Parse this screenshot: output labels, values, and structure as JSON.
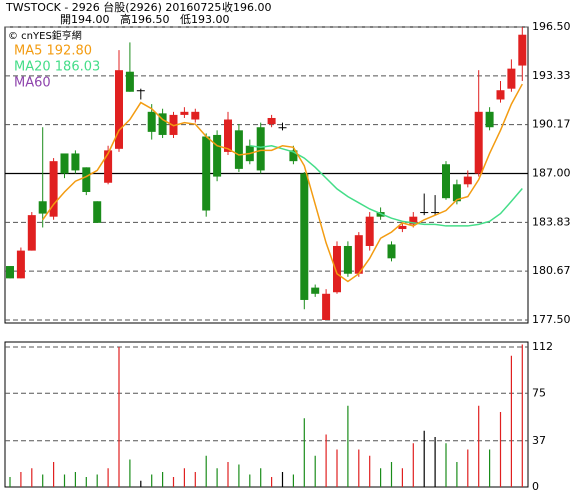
{
  "header": {
    "line1": "TWSTOCK - 2926 台股(2926) 20160725",
    "close": "收196.00",
    "open": "開194.00",
    "high": "高196.50",
    "low": "低193.00"
  },
  "chart_data": [
    {
      "type": "candlestick",
      "legend": {
        "source": "© cnYES鉅亨網",
        "entries": [
          {
            "label": "MA5 192.80",
            "color": "#f39c12"
          },
          {
            "label": "MA20 186.03",
            "color": "#44dd88"
          },
          {
            "label": "MA60",
            "color": "#8e44ad"
          }
        ]
      },
      "open": [
        181,
        180.2,
        182,
        185.2,
        184.2,
        188.3,
        188.3,
        187.4,
        185.2,
        186.4,
        188.6,
        193.6,
        192.4,
        191,
        190.9,
        189.5,
        190.8,
        190.5,
        189.4,
        189.5,
        188.4,
        189.8,
        188.8,
        190,
        190.2,
        190,
        188.5,
        187,
        179.6,
        177.5,
        179.3,
        182.3,
        180.5,
        182.3,
        184.5,
        182.4,
        183.4,
        183.7,
        184.5,
        184.5,
        187.6,
        186.3,
        186.3,
        187,
        191,
        191.8,
        192.5,
        194
      ],
      "high": [
        181,
        182.2,
        184.5,
        190,
        188,
        188.3,
        188.5,
        187.4,
        185.2,
        188.8,
        195,
        195.5,
        192.5,
        191.5,
        191.2,
        191,
        191.3,
        191.2,
        189.6,
        189.8,
        191,
        190.2,
        189.2,
        190.3,
        190.8,
        190.3,
        188.8,
        187.1,
        179.8,
        179.5,
        182.6,
        182.6,
        183.2,
        184.5,
        184.8,
        182.6,
        183.8,
        184.5,
        185.7,
        185.6,
        187.8,
        186.6,
        187.2,
        193.7,
        191.3,
        193,
        194.4,
        196.5
      ],
      "low": [
        180.2,
        180.2,
        182,
        183.5,
        184,
        186.7,
        187,
        185.6,
        183.8,
        186.3,
        188.4,
        192.3,
        191.8,
        189.2,
        189.3,
        189.3,
        190.6,
        190.3,
        184.2,
        186.5,
        188.2,
        187.1,
        187.6,
        187,
        190,
        189.8,
        187.6,
        178.2,
        179,
        177.5,
        179.2,
        180.3,
        180.3,
        182,
        184,
        181.3,
        183.2,
        183.5,
        184.3,
        184.3,
        185.3,
        185,
        186.1,
        186.8,
        189.8,
        191.6,
        192.3,
        193
      ],
      "close": [
        180.2,
        182,
        184.3,
        184.4,
        187.8,
        187,
        187.2,
        185.8,
        183.8,
        188.5,
        193.7,
        192.3,
        192.4,
        189.7,
        189.5,
        190.8,
        191,
        191,
        184.6,
        186.8,
        190.5,
        187.3,
        187.8,
        187.2,
        190.6,
        190,
        187.8,
        178.8,
        179.2,
        179.2,
        182.3,
        180.5,
        183,
        184.2,
        184.2,
        181.5,
        183.6,
        184.2,
        184.5,
        184.5,
        185.4,
        185.2,
        186.8,
        191,
        190,
        192.4,
        193.8,
        196
      ],
      "ma5": [
        null,
        null,
        null,
        184,
        185,
        185.8,
        186.5,
        186.8,
        187.2,
        188.3,
        189.8,
        190.5,
        191.6,
        191.2,
        190.5,
        190.1,
        190.3,
        190.2,
        189.4,
        188.8,
        188.6,
        188.2,
        188.3,
        188.5,
        188.5,
        188.8,
        188.7,
        187.5,
        185,
        182.5,
        180.5,
        180,
        180.5,
        181.5,
        182.8,
        183.2,
        183.8,
        183.6,
        184.0,
        184.3,
        184.6,
        185.3,
        185.5,
        186.6,
        188.3,
        189.8,
        191.5,
        192.8
      ],
      "ma20": [
        null,
        null,
        null,
        null,
        null,
        null,
        null,
        null,
        null,
        null,
        null,
        null,
        null,
        null,
        null,
        null,
        null,
        null,
        null,
        null,
        null,
        null,
        188.8,
        188.7,
        188.8,
        188.6,
        188.4,
        188,
        187.4,
        186.7,
        186,
        185.5,
        185.1,
        184.7,
        184.4,
        184.1,
        183.9,
        183.8,
        183.7,
        183.7,
        183.6,
        183.6,
        183.6,
        183.7,
        183.9,
        184.4,
        185.2,
        186.03
      ],
      "ylim": [
        177.5,
        196.5
      ],
      "yticks": [
        {
          "value": 177.5,
          "label": "177.50"
        },
        {
          "value": 180.67,
          "label": "180.67"
        },
        {
          "value": 183.83,
          "label": "183.83"
        },
        {
          "value": 187.0,
          "label": "187.00"
        },
        {
          "value": 190.17,
          "label": "190.17"
        },
        {
          "value": 193.33,
          "label": "193.33"
        },
        {
          "value": 196.5,
          "label": "196.50"
        }
      ],
      "reference_line": 187.0,
      "up_color": "#e02020",
      "down_color": "#1a8c1a",
      "flat_color": "#000000"
    },
    {
      "type": "volume",
      "values": [
        8,
        12,
        15,
        10,
        20,
        10,
        12,
        8,
        10,
        15,
        112,
        22,
        5,
        10,
        12,
        8,
        15,
        12,
        25,
        15,
        20,
        18,
        10,
        15,
        8,
        12,
        10,
        55,
        25,
        42,
        30,
        65,
        30,
        25,
        15,
        20,
        15,
        35,
        45,
        40,
        35,
        20,
        30,
        65,
        30,
        60,
        105,
        114
      ],
      "ylim": [
        0,
        116
      ],
      "yticks": [
        0,
        37,
        75,
        112
      ]
    }
  ]
}
